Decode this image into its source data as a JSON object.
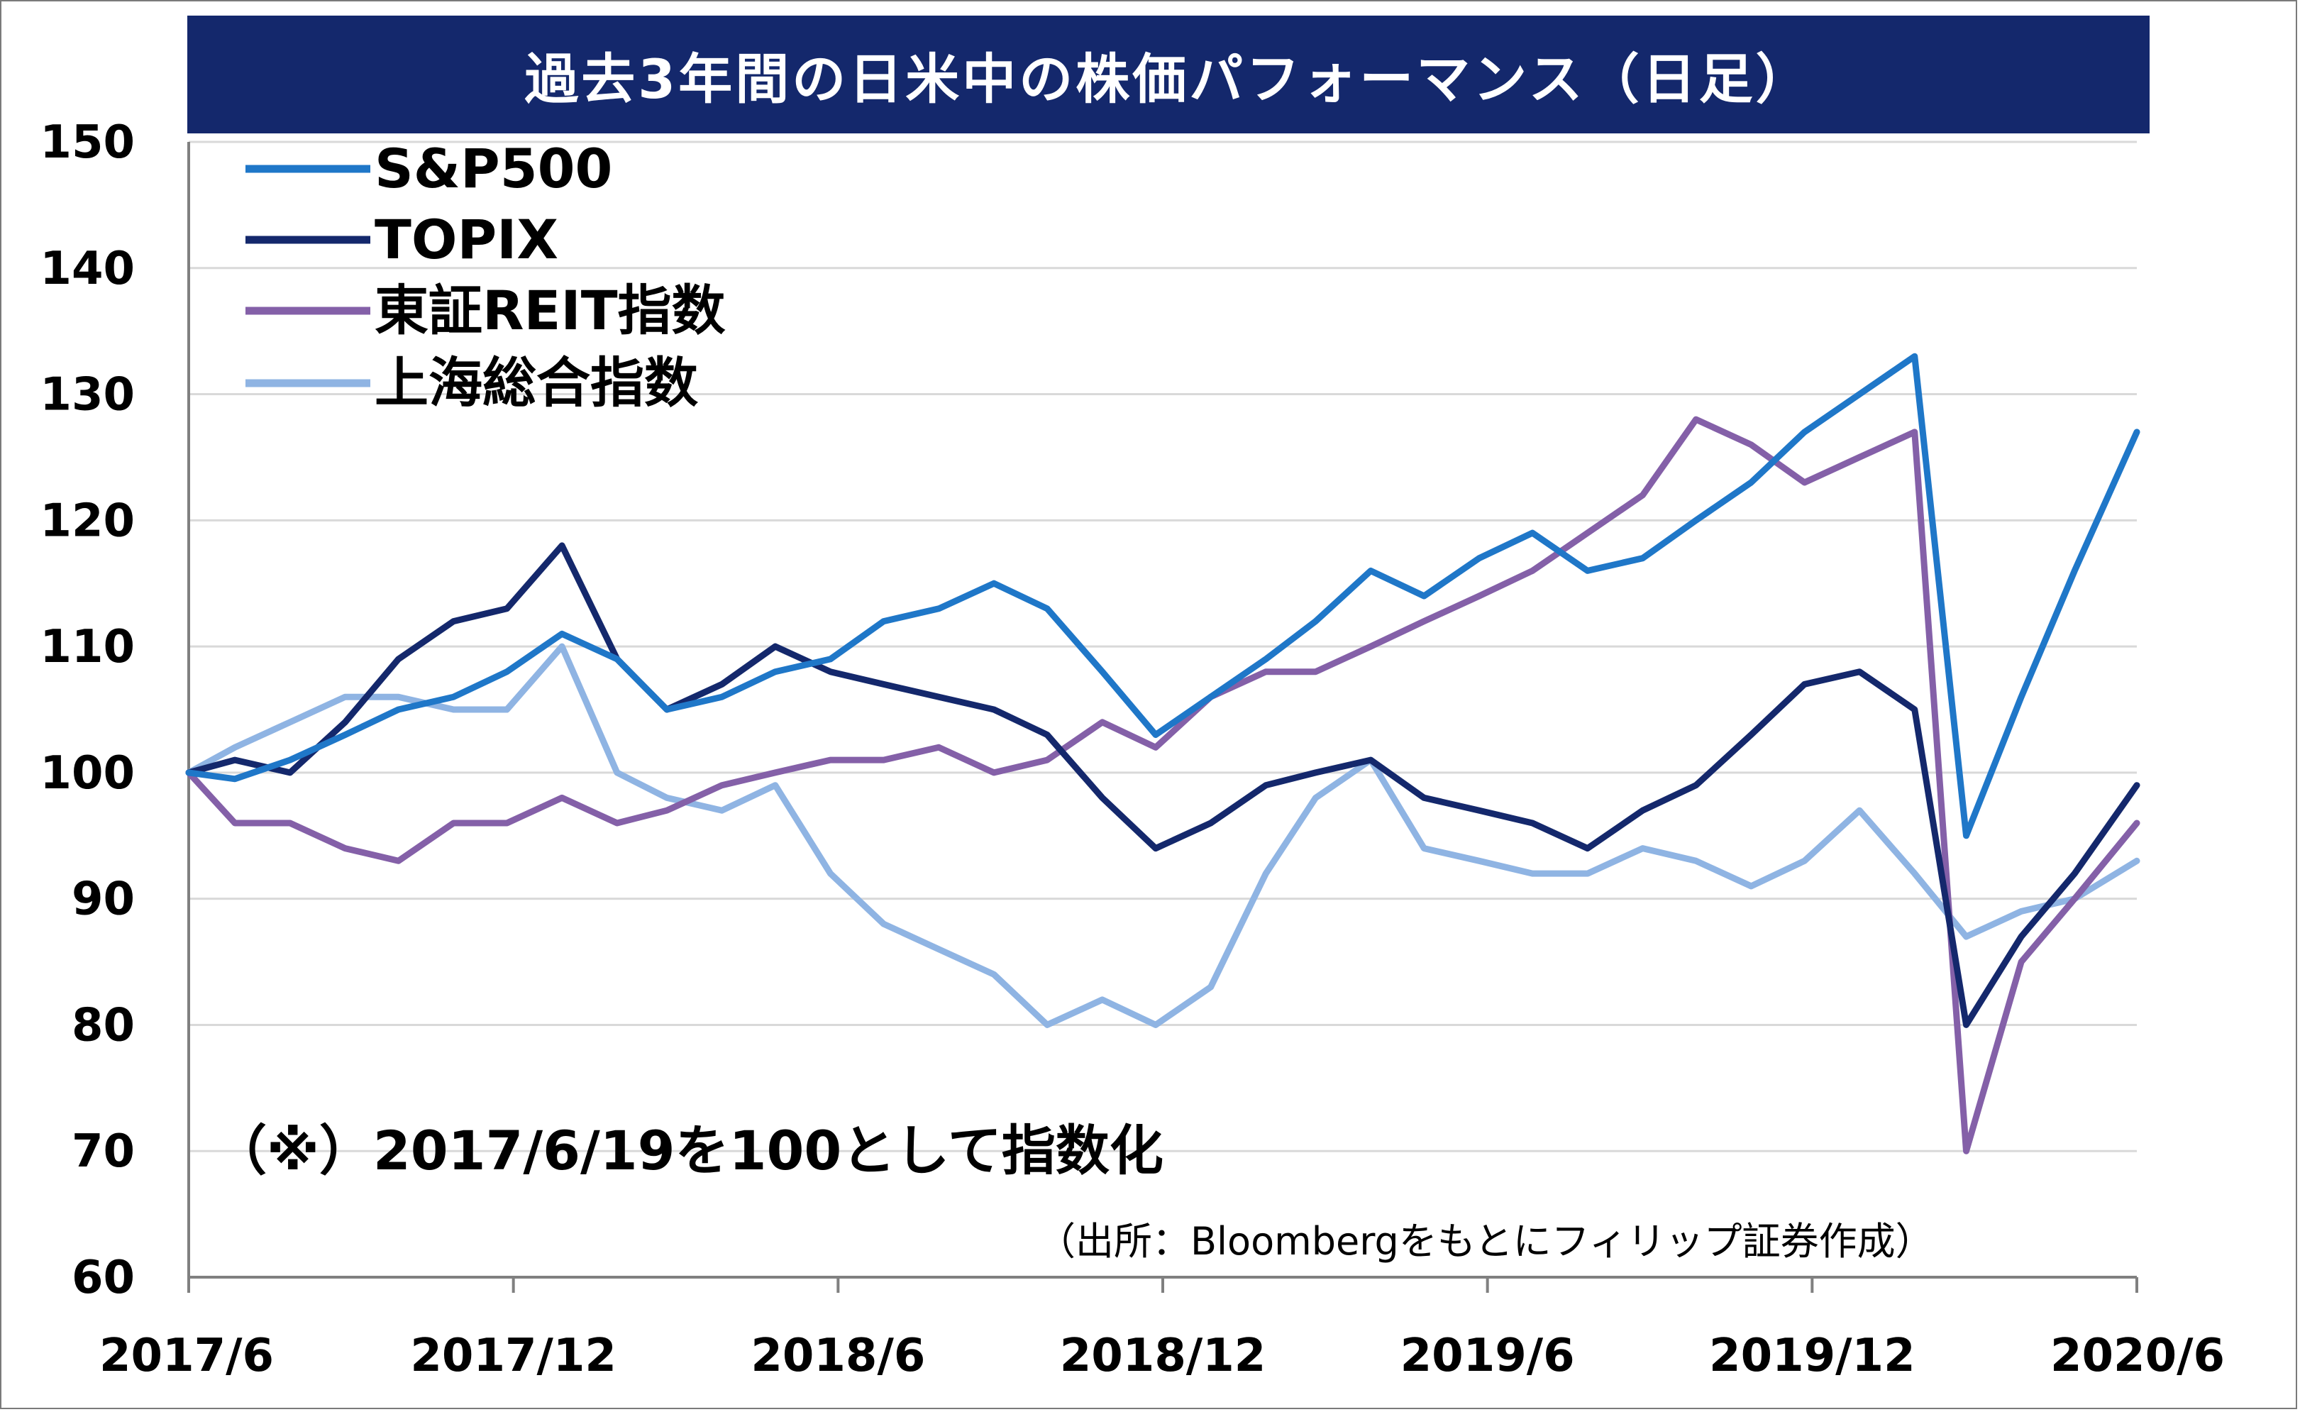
{
  "title": "過去3年間の日米中の株価パフォーマンス（日足）",
  "note": "（※）2017/6/19を100として指数化",
  "source": "（出所：Bloombergをもとにフィリップ証券作成）",
  "chart_data": {
    "type": "line",
    "title": "過去3年間の日米中の株価パフォーマンス（日足）",
    "xlabel": "",
    "ylabel": "",
    "ylim": [
      60,
      150
    ],
    "yticks": [
      150,
      140,
      130,
      120,
      110,
      100,
      90,
      80,
      70,
      60
    ],
    "xticks": [
      "2017/6",
      "2017/12",
      "2018/6",
      "2018/12",
      "2019/6",
      "2019/12",
      "2020/6"
    ],
    "xlim": [
      "2017/6/19",
      "2020/6/19"
    ],
    "grid": true,
    "legend": "top-left",
    "x": [
      "2017/6/19",
      "2017/7/15",
      "2017/8/15",
      "2017/9/15",
      "2017/10/15",
      "2017/11/15",
      "2017/12/15",
      "2018/1/15",
      "2018/2/15",
      "2018/3/15",
      "2018/4/15",
      "2018/5/15",
      "2018/6/15",
      "2018/7/15",
      "2018/8/15",
      "2018/9/15",
      "2018/10/15",
      "2018/11/15",
      "2018/12/15",
      "2019/1/15",
      "2019/2/15",
      "2019/3/15",
      "2019/4/15",
      "2019/5/15",
      "2019/6/15",
      "2019/7/15",
      "2019/8/15",
      "2019/9/15",
      "2019/10/15",
      "2019/11/15",
      "2019/12/15",
      "2020/1/15",
      "2020/2/15",
      "2020/3/15",
      "2020/4/15",
      "2020/5/15",
      "2020/6/19"
    ],
    "series": [
      {
        "name": "S&P500",
        "color": "#1f77c8",
        "values": [
          100,
          99.5,
          101,
          103,
          105,
          106,
          108,
          111,
          109,
          105,
          106,
          108,
          109,
          112,
          113,
          115,
          113,
          108,
          103,
          106,
          109,
          112,
          116,
          114,
          117,
          119,
          116,
          117,
          120,
          123,
          127,
          130,
          133,
          95,
          106,
          116,
          127
        ]
      },
      {
        "name": "TOPIX",
        "color": "#14286c",
        "values": [
          100,
          101,
          100,
          104,
          109,
          112,
          113,
          118,
          109,
          105,
          107,
          110,
          108,
          107,
          106,
          105,
          103,
          98,
          94,
          96,
          99,
          100,
          101,
          98,
          97,
          96,
          94,
          97,
          99,
          103,
          107,
          108,
          105,
          80,
          87,
          92,
          99
        ]
      },
      {
        "name": "東証REIT指数",
        "color": "#8460a8",
        "values": [
          100,
          96,
          96,
          94,
          93,
          96,
          96,
          98,
          96,
          97,
          99,
          100,
          101,
          101,
          102,
          100,
          101,
          104,
          102,
          106,
          108,
          108,
          110,
          112,
          114,
          116,
          119,
          122,
          128,
          126,
          123,
          125,
          127,
          70,
          85,
          90,
          96
        ]
      },
      {
        "name": "上海総合指数",
        "color": "#8fb4e3",
        "values": [
          100,
          102,
          104,
          106,
          106,
          105,
          105,
          110,
          100,
          98,
          97,
          99,
          92,
          88,
          86,
          84,
          80,
          82,
          80,
          83,
          92,
          98,
          101,
          94,
          93,
          92,
          92,
          94,
          93,
          91,
          93,
          97,
          92,
          87,
          89,
          90,
          93
        ]
      }
    ]
  }
}
